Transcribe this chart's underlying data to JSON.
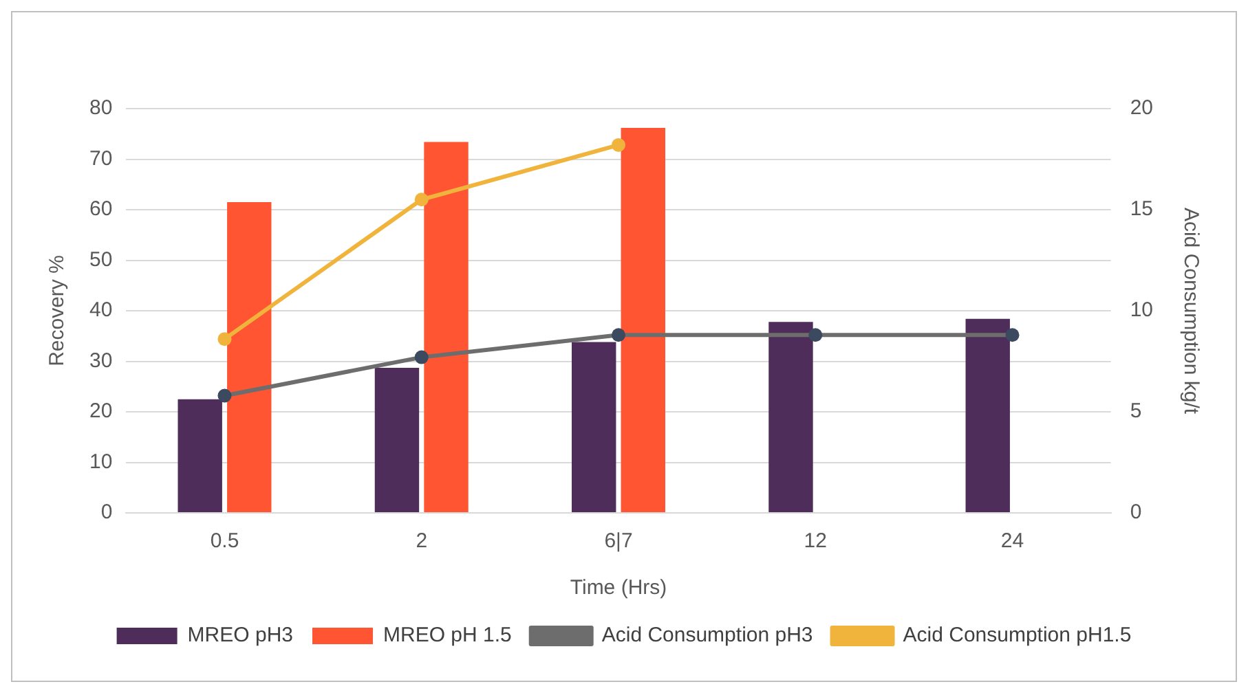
{
  "chart_data": {
    "type": "bar",
    "xlabel": "Time (Hrs)",
    "ylabel": "Recovery %",
    "y2label": "Acid Consumption kg/t",
    "categories": [
      "0.5",
      "2",
      "6|7",
      "12",
      "24"
    ],
    "series": [
      {
        "name": "MREO pH3",
        "color": "#4f2d5b",
        "values": [
          22.5,
          28.7,
          33.8,
          37.8,
          38.4
        ]
      },
      {
        "name": "MREO pH 1.5",
        "color": "#ff5533",
        "values": [
          61.5,
          73.4,
          76.2,
          null,
          null
        ]
      },
      {
        "name": "Acid Consumption pH3",
        "type": "line",
        "axis": "y2",
        "color": "#6d6d6d",
        "values": [
          5.8,
          7.7,
          8.8,
          8.8,
          8.8
        ]
      },
      {
        "name": "Acid Consumption pH1.5",
        "type": "line",
        "axis": "y2",
        "color": "#f0b43c",
        "values": [
          8.6,
          15.5,
          18.2,
          null,
          null
        ]
      }
    ],
    "ylim": [
      0,
      80
    ],
    "yticks": [
      0,
      10,
      20,
      30,
      40,
      50,
      60,
      70,
      80
    ],
    "y2lim": [
      0,
      20
    ],
    "y2ticks": [
      0,
      5,
      10,
      15,
      20
    ],
    "grid": "y",
    "legend": "bottom",
    "marker": "circle"
  }
}
